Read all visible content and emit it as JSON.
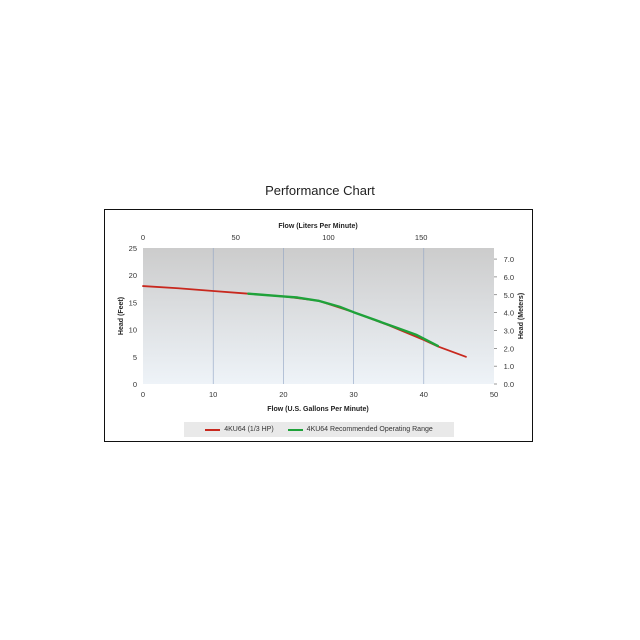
{
  "page_title": "Performance Chart",
  "colors": {
    "red": "#c8281e",
    "green": "#1fa23a",
    "plot_top": "#cccccc",
    "plot_bottom": "#eef3f8",
    "grid": "#8fa3c4"
  },
  "chart_data": {
    "type": "line",
    "xlabel": "Flow (U.S. Gallons Per Minute)",
    "x2label": "Flow (Liters Per Minute)",
    "ylabel": "Head (Feet)",
    "y2label": "Head (Meters)",
    "xlim": [
      0,
      50
    ],
    "ylim": [
      0,
      25
    ],
    "x2lim": [
      0,
      189.27
    ],
    "y2lim": [
      0,
      7.62
    ],
    "xticks": [
      "0",
      "10",
      "20",
      "30",
      "40",
      "50"
    ],
    "yticks": [
      "0",
      "5",
      "10",
      "15",
      "20",
      "25"
    ],
    "x2ticks": [
      "0",
      "50",
      "100",
      "150"
    ],
    "y2ticks": [
      "0.0",
      "1.0",
      "2.0",
      "3.0",
      "4.0",
      "5.0",
      "6.0",
      "7.0"
    ],
    "grid": true,
    "legend_position": "bottom",
    "series": [
      {
        "name": "4KU64 (1/3 HP)",
        "color": "#c8281e",
        "x": [
          0,
          5,
          10,
          15,
          20,
          25,
          30,
          35,
          40,
          42,
          46
        ],
        "y": [
          18,
          17.6,
          17.1,
          16.6,
          16.1,
          15.3,
          13.2,
          10.8,
          8.1,
          6.9,
          5
        ]
      },
      {
        "name": "4KU64 Recommended Operating Range",
        "color": "#1fa23a",
        "x": [
          15,
          20,
          22,
          25,
          28,
          30,
          33,
          36,
          39,
          42
        ],
        "y": [
          16.6,
          16.1,
          15.9,
          15.3,
          14.2,
          13.2,
          11.8,
          10.4,
          9.0,
          7.0
        ]
      }
    ]
  }
}
